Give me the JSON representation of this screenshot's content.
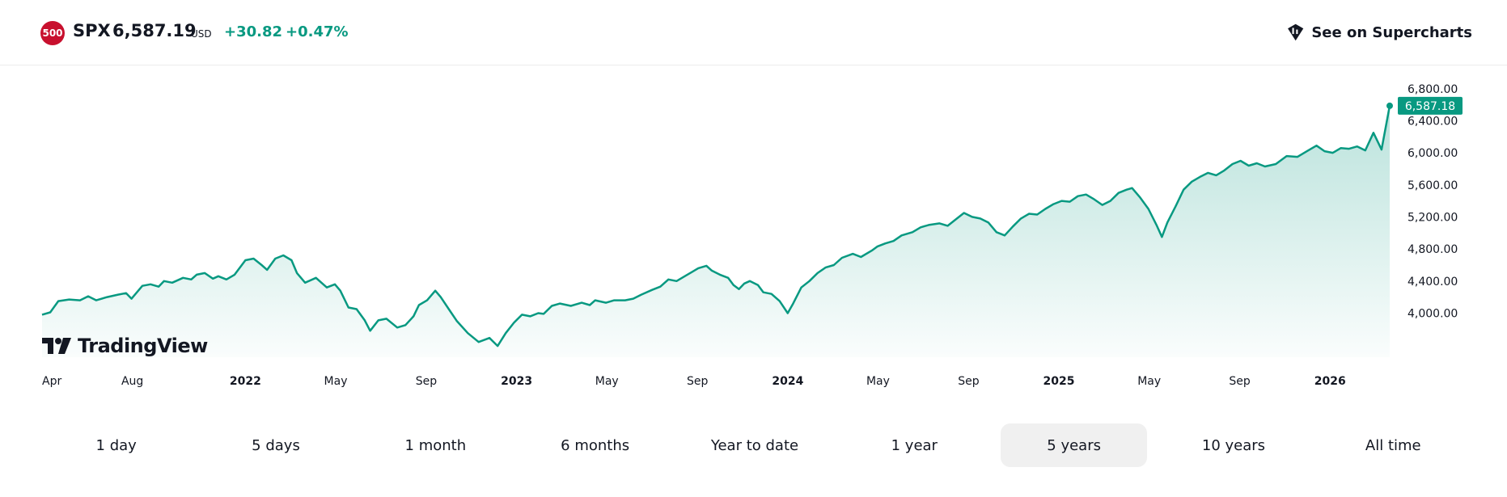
{
  "header": {
    "badge": "500",
    "symbol": "SPX",
    "price": "6,587.19",
    "currency": "USD",
    "change": "+30.82",
    "change_pct": "+0.47%",
    "supercharts_label": "See on Supercharts"
  },
  "logo": {
    "text": "TradingView",
    "icon": "tradingview-logo-icon"
  },
  "colors": {
    "line": "#089981",
    "badge": "#c8102e",
    "price_label_bg": "#089981"
  },
  "chart_data": {
    "type": "area",
    "last_value_label": "6,587.18",
    "y_ticks": [
      "4,000.00",
      "4,400.00",
      "4,800.00",
      "5,200.00",
      "5,600.00",
      "6,000.00",
      "6,400.00",
      "6,800.00"
    ],
    "y_tick_values": [
      4000,
      4400,
      4800,
      5200,
      5600,
      6000,
      6400,
      6800
    ],
    "ylim": [
      3450,
      7080
    ],
    "x_labels": [
      {
        "label": "Apr",
        "t": 2021.25,
        "bold": false
      },
      {
        "label": "Aug",
        "t": 2021.583,
        "bold": false
      },
      {
        "label": "2022",
        "t": 2022.0,
        "bold": true
      },
      {
        "label": "May",
        "t": 2022.333,
        "bold": false
      },
      {
        "label": "Sep",
        "t": 2022.667,
        "bold": false
      },
      {
        "label": "2023",
        "t": 2023.0,
        "bold": true
      },
      {
        "label": "May",
        "t": 2023.333,
        "bold": false
      },
      {
        "label": "Sep",
        "t": 2023.667,
        "bold": false
      },
      {
        "label": "2024",
        "t": 2024.0,
        "bold": true
      },
      {
        "label": "May",
        "t": 2024.333,
        "bold": false
      },
      {
        "label": "Sep",
        "t": 2024.667,
        "bold": false
      },
      {
        "label": "2025",
        "t": 2025.0,
        "bold": true
      },
      {
        "label": "May",
        "t": 2025.333,
        "bold": false
      },
      {
        "label": "Sep",
        "t": 2025.667,
        "bold": false
      },
      {
        "label": "2026",
        "t": 2026.0,
        "bold": true
      }
    ],
    "xlim": [
      2021.25,
      2026.22
    ],
    "points": [
      [
        2021.25,
        3980
      ],
      [
        2021.28,
        4010
      ],
      [
        2021.31,
        4150
      ],
      [
        2021.35,
        4170
      ],
      [
        2021.39,
        4160
      ],
      [
        2021.42,
        4210
      ],
      [
        2021.45,
        4160
      ],
      [
        2021.49,
        4200
      ],
      [
        2021.53,
        4230
      ],
      [
        2021.56,
        4250
      ],
      [
        2021.58,
        4180
      ],
      [
        2021.62,
        4340
      ],
      [
        2021.65,
        4360
      ],
      [
        2021.68,
        4330
      ],
      [
        2021.7,
        4400
      ],
      [
        2021.73,
        4380
      ],
      [
        2021.77,
        4440
      ],
      [
        2021.8,
        4420
      ],
      [
        2021.82,
        4480
      ],
      [
        2021.85,
        4500
      ],
      [
        2021.88,
        4430
      ],
      [
        2021.9,
        4460
      ],
      [
        2021.93,
        4420
      ],
      [
        2021.96,
        4480
      ],
      [
        2022.0,
        4660
      ],
      [
        2022.03,
        4680
      ],
      [
        2022.06,
        4600
      ],
      [
        2022.08,
        4540
      ],
      [
        2022.11,
        4680
      ],
      [
        2022.14,
        4720
      ],
      [
        2022.17,
        4660
      ],
      [
        2022.19,
        4500
      ],
      [
        2022.22,
        4380
      ],
      [
        2022.26,
        4440
      ],
      [
        2022.3,
        4320
      ],
      [
        2022.33,
        4360
      ],
      [
        2022.35,
        4280
      ],
      [
        2022.38,
        4070
      ],
      [
        2022.41,
        4050
      ],
      [
        2022.44,
        3910
      ],
      [
        2022.46,
        3780
      ],
      [
        2022.49,
        3910
      ],
      [
        2022.52,
        3930
      ],
      [
        2022.56,
        3820
      ],
      [
        2022.59,
        3850
      ],
      [
        2022.62,
        3960
      ],
      [
        2022.64,
        4100
      ],
      [
        2022.67,
        4160
      ],
      [
        2022.7,
        4280
      ],
      [
        2022.72,
        4200
      ],
      [
        2022.75,
        4050
      ],
      [
        2022.78,
        3900
      ],
      [
        2022.82,
        3750
      ],
      [
        2022.86,
        3640
      ],
      [
        2022.9,
        3690
      ],
      [
        2022.93,
        3590
      ],
      [
        2022.96,
        3750
      ],
      [
        2022.99,
        3880
      ],
      [
        2023.02,
        3980
      ],
      [
        2023.05,
        3960
      ],
      [
        2023.08,
        4000
      ],
      [
        2023.1,
        3990
      ],
      [
        2023.13,
        4090
      ],
      [
        2023.16,
        4120
      ],
      [
        2023.2,
        4090
      ],
      [
        2023.24,
        4130
      ],
      [
        2023.27,
        4100
      ],
      [
        2023.29,
        4160
      ],
      [
        2023.33,
        4130
      ],
      [
        2023.36,
        4160
      ],
      [
        2023.4,
        4160
      ],
      [
        2023.43,
        4180
      ],
      [
        2023.46,
        4230
      ],
      [
        2023.5,
        4290
      ],
      [
        2023.53,
        4330
      ],
      [
        2023.56,
        4420
      ],
      [
        2023.59,
        4400
      ],
      [
        2023.62,
        4460
      ],
      [
        2023.65,
        4520
      ],
      [
        2023.67,
        4560
      ],
      [
        2023.7,
        4590
      ],
      [
        2023.72,
        4530
      ],
      [
        2023.75,
        4480
      ],
      [
        2023.78,
        4440
      ],
      [
        2023.8,
        4350
      ],
      [
        2023.82,
        4300
      ],
      [
        2023.84,
        4370
      ],
      [
        2023.86,
        4400
      ],
      [
        2023.89,
        4350
      ],
      [
        2023.91,
        4260
      ],
      [
        2023.94,
        4240
      ],
      [
        2023.97,
        4150
      ],
      [
        2024.0,
        4000
      ],
      [
        2024.02,
        4120
      ],
      [
        2024.05,
        4320
      ],
      [
        2024.08,
        4400
      ],
      [
        2024.11,
        4500
      ],
      [
        2024.14,
        4570
      ],
      [
        2024.17,
        4600
      ],
      [
        2024.2,
        4690
      ],
      [
        2024.24,
        4740
      ],
      [
        2024.27,
        4700
      ],
      [
        2024.31,
        4780
      ],
      [
        2024.33,
        4830
      ],
      [
        2024.36,
        4870
      ],
      [
        2024.39,
        4900
      ],
      [
        2024.42,
        4970
      ],
      [
        2024.46,
        5010
      ],
      [
        2024.49,
        5070
      ],
      [
        2024.52,
        5100
      ],
      [
        2024.56,
        5120
      ],
      [
        2024.59,
        5090
      ],
      [
        2024.62,
        5170
      ],
      [
        2024.65,
        5250
      ],
      [
        2024.68,
        5200
      ],
      [
        2024.71,
        5180
      ],
      [
        2024.74,
        5130
      ],
      [
        2024.77,
        5010
      ],
      [
        2024.8,
        4970
      ],
      [
        2024.83,
        5080
      ],
      [
        2024.86,
        5180
      ],
      [
        2024.89,
        5240
      ],
      [
        2024.92,
        5230
      ],
      [
        2024.95,
        5300
      ],
      [
        2024.98,
        5360
      ],
      [
        2025.01,
        5400
      ],
      [
        2025.04,
        5390
      ],
      [
        2025.07,
        5460
      ],
      [
        2025.1,
        5480
      ],
      [
        2025.13,
        5420
      ],
      [
        2025.16,
        5350
      ],
      [
        2025.19,
        5400
      ],
      [
        2025.22,
        5500
      ],
      [
        2025.25,
        5540
      ],
      [
        2025.27,
        5560
      ],
      [
        2025.3,
        5440
      ],
      [
        2025.33,
        5300
      ],
      [
        2025.36,
        5100
      ],
      [
        2025.38,
        4950
      ],
      [
        2025.4,
        5130
      ],
      [
        2025.43,
        5330
      ],
      [
        2025.46,
        5540
      ],
      [
        2025.49,
        5640
      ],
      [
        2025.52,
        5700
      ],
      [
        2025.55,
        5750
      ],
      [
        2025.58,
        5720
      ],
      [
        2025.61,
        5780
      ],
      [
        2025.64,
        5860
      ],
      [
        2025.67,
        5900
      ],
      [
        2025.7,
        5840
      ],
      [
        2025.73,
        5870
      ],
      [
        2025.76,
        5830
      ],
      [
        2025.8,
        5860
      ],
      [
        2025.84,
        5960
      ],
      [
        2025.88,
        5950
      ],
      [
        2025.92,
        6030
      ],
      [
        2025.95,
        6090
      ],
      [
        2025.98,
        6020
      ],
      [
        2026.01,
        6000
      ],
      [
        2026.04,
        6060
      ],
      [
        2026.07,
        6050
      ],
      [
        2026.1,
        6080
      ],
      [
        2026.13,
        6030
      ],
      [
        2026.16,
        6250
      ],
      [
        2026.19,
        6040
      ],
      [
        2026.22,
        6587
      ]
    ]
  },
  "ranges": {
    "items": [
      "1 day",
      "5 days",
      "1 month",
      "6 months",
      "Year to date",
      "1 year",
      "5 years",
      "10 years",
      "All time"
    ],
    "active": "5 years"
  }
}
